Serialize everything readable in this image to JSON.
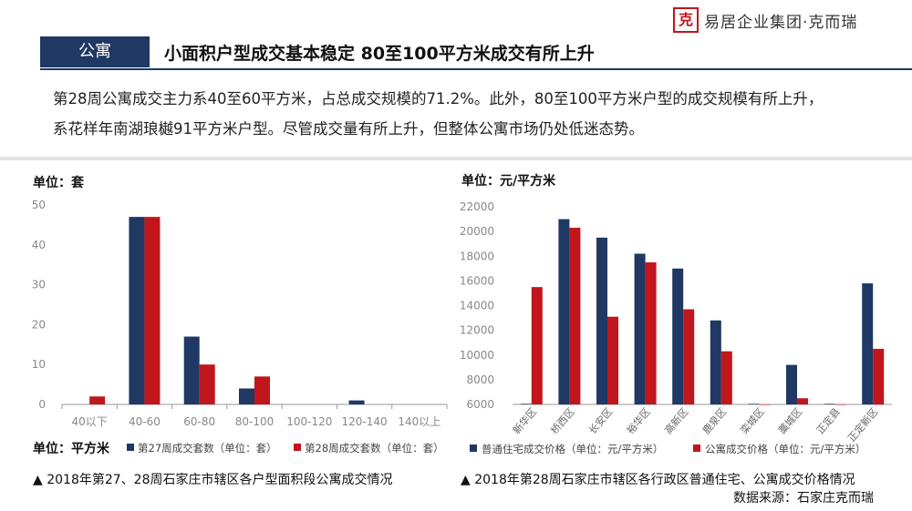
{
  "brand": {
    "seal": "克",
    "name": "易居企业集团·克而瑞"
  },
  "header": {
    "badge": "公寓",
    "headline": "小面积户型成交基本稳定 80至100平方米成交有所上升"
  },
  "intro": [
    "第28周公寓成交主力系40至60平方米，占总成交规模的71.2%。此外，80至100平方米户型的成交规模有所上升，",
    "系花样年南湖琅樾91平方米户型。尽管成交量有所上升，但整体公寓市场仍处低迷态势。"
  ],
  "colors": {
    "navy": "#1f3864",
    "red": "#c0161c",
    "axis": "#8a8a8a"
  },
  "chart_data": [
    {
      "type": "bar",
      "unit_label": "单位：套",
      "xlabel": "单位：平方米",
      "categories": [
        "40以下",
        "40-60",
        "60-80",
        "80-100",
        "100-120",
        "120-140",
        "140以上"
      ],
      "ylim": [
        0,
        50
      ],
      "yticks": [
        0,
        10,
        20,
        30,
        40,
        50
      ],
      "series": [
        {
          "name": "第27周成交套数（单位：套）",
          "color": "#1f3864",
          "values": [
            0,
            47,
            17,
            4,
            0,
            1,
            0
          ]
        },
        {
          "name": "第28周成交套数（单位：套）",
          "color": "#c0161c",
          "values": [
            2,
            47,
            10,
            7,
            0,
            0,
            0
          ]
        }
      ],
      "caption": "▲ 2018年第27、28周石家庄市辖区各户型面积段公寓成交情况"
    },
    {
      "type": "bar",
      "unit_label": "单位：元/平方米",
      "categories": [
        "新华区",
        "桥西区",
        "长安区",
        "裕华区",
        "高新区",
        "鹿泉区",
        "栾城区",
        "藁城区",
        "正定县",
        "正定新区"
      ],
      "ylim": [
        6000,
        22000
      ],
      "yticks": [
        6000,
        8000,
        10000,
        12000,
        14000,
        16000,
        18000,
        20000,
        22000
      ],
      "series": [
        {
          "name": "普通住宅成交价格（单位：元/平方米）",
          "color": "#1f3864",
          "values": [
            6050,
            21000,
            19500,
            18200,
            17000,
            12800,
            6050,
            9200,
            6050,
            15800
          ]
        },
        {
          "name": "公寓成交价格（单位：元/平方米）",
          "color": "#c0161c",
          "values": [
            15500,
            20300,
            13100,
            17500,
            13700,
            10300,
            6000,
            6500,
            6000,
            10500
          ]
        }
      ],
      "caption": "▲ 2018年第28周石家庄市辖区各行政区普通住宅、公寓成交价格情况"
    }
  ],
  "source": "数据来源：石家庄克而瑞"
}
